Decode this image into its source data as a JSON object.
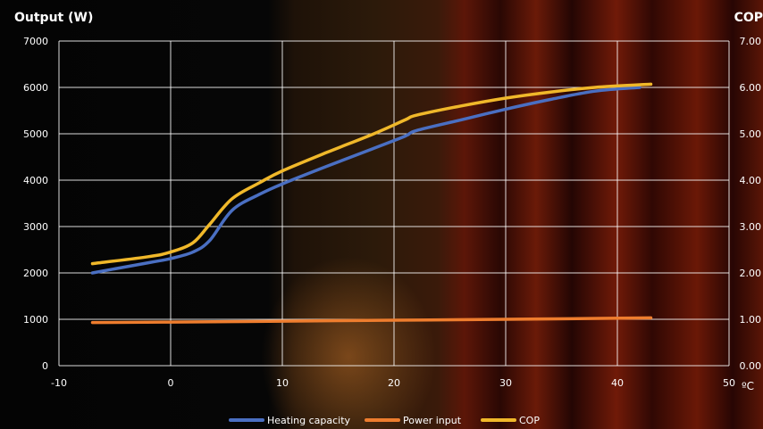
{
  "chart_data": {
    "type": "line",
    "title": "",
    "ylabel_left": "Output (W)",
    "ylabel_right": "COP",
    "xlabel_unit": "ºC",
    "xlim": [
      -10,
      50
    ],
    "ylim_left": [
      0,
      7000
    ],
    "ylim_right": [
      0,
      7
    ],
    "x_ticks": [
      "-10",
      "0",
      "10",
      "20",
      "30",
      "40",
      "50"
    ],
    "y_left_ticks": [
      "0",
      "1000",
      "2000",
      "3000",
      "4000",
      "5000",
      "6000",
      "7000"
    ],
    "y_right_ticks": [
      "0.00",
      "1.00",
      "2.00",
      "3.00",
      "4.00",
      "5.00",
      "6.00",
      "7.00"
    ],
    "grid": true,
    "legend_position": "bottom",
    "series": [
      {
        "name": "Heating capacity",
        "axis": "left",
        "color": "#4a6fc2",
        "points": [
          [
            -7,
            2000
          ],
          [
            -2,
            2220
          ],
          [
            0,
            2310
          ],
          [
            2,
            2450
          ],
          [
            3.5,
            2700
          ],
          [
            5.5,
            3350
          ],
          [
            8,
            3700
          ],
          [
            10,
            3920
          ],
          [
            14,
            4300
          ],
          [
            18,
            4670
          ],
          [
            21,
            4950
          ],
          [
            22,
            5070
          ],
          [
            26,
            5300
          ],
          [
            30,
            5530
          ],
          [
            34,
            5740
          ],
          [
            38,
            5920
          ],
          [
            42,
            6000
          ]
        ]
      },
      {
        "name": "Power input",
        "axis": "left",
        "color": "#ee7d2e",
        "points": [
          [
            -7,
            930
          ],
          [
            0,
            940
          ],
          [
            10,
            960
          ],
          [
            20,
            980
          ],
          [
            30,
            1000
          ],
          [
            43,
            1030
          ]
        ]
      },
      {
        "name": "COP",
        "axis": "right",
        "color": "#f0b82a",
        "points": [
          [
            -7,
            2.2
          ],
          [
            -2,
            2.35
          ],
          [
            0,
            2.45
          ],
          [
            2,
            2.65
          ],
          [
            3.5,
            3.05
          ],
          [
            5.5,
            3.6
          ],
          [
            8,
            3.95
          ],
          [
            10,
            4.2
          ],
          [
            14,
            4.6
          ],
          [
            18,
            4.98
          ],
          [
            21,
            5.3
          ],
          [
            22,
            5.4
          ],
          [
            26,
            5.6
          ],
          [
            30,
            5.77
          ],
          [
            34,
            5.9
          ],
          [
            38,
            6.0
          ],
          [
            43,
            6.07
          ]
        ]
      }
    ]
  }
}
